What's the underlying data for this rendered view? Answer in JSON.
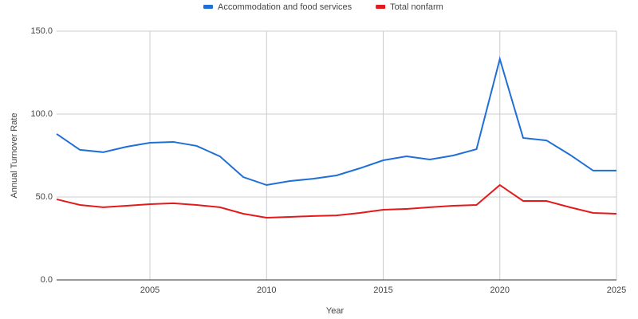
{
  "chart_data": {
    "type": "line",
    "x_label": "Year",
    "y_label": "Annual Turnover Rate",
    "x": [
      2001,
      2002,
      2003,
      2004,
      2005,
      2006,
      2007,
      2008,
      2009,
      2010,
      2011,
      2012,
      2013,
      2014,
      2015,
      2016,
      2017,
      2018,
      2019,
      2020,
      2021,
      2022,
      2023,
      2024,
      2025
    ],
    "series": [
      {
        "name": "Accommodation and food services",
        "color": "#1f6fd6",
        "values": [
          88,
          78.4,
          77,
          80.3,
          82.7,
          83.2,
          80.8,
          74.5,
          62,
          57.2,
          59.6,
          61,
          63,
          67.3,
          72.1,
          74.5,
          72.6,
          75,
          78.8,
          133.2,
          85.6,
          84.1,
          75.5,
          65.9,
          65.9
        ]
      },
      {
        "name": "Total nonfarm",
        "color": "#e31a1c",
        "values": [
          48.6,
          45.2,
          43.8,
          44.7,
          45.7,
          46.2,
          45.2,
          43.8,
          39.9,
          37.5,
          38,
          38.5,
          38.9,
          40.4,
          42.3,
          42.8,
          43.8,
          44.7,
          45.2,
          57.2,
          47.6,
          47.6,
          43.8,
          40.4,
          39.9
        ]
      }
    ],
    "xlim": [
      2001,
      2025
    ],
    "xticks": [
      2005,
      2010,
      2015,
      2020,
      2025
    ],
    "ylim": [
      0,
      150
    ],
    "yticks": [
      {
        "value": 0,
        "label": "0.0"
      },
      {
        "value": 50,
        "label": "50.0"
      },
      {
        "value": 100,
        "label": "100.0"
      },
      {
        "value": 150,
        "label": "150.0"
      }
    ],
    "grid": true,
    "legend": "top"
  }
}
